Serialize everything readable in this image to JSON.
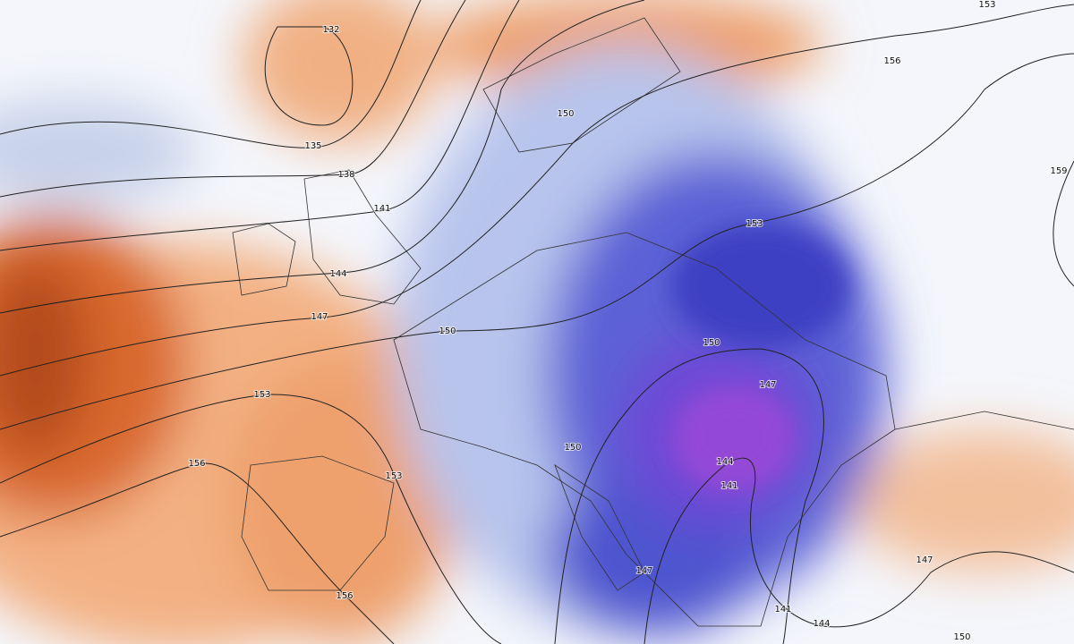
{
  "map": {
    "contour_labels": [
      132,
      135,
      138,
      141,
      144,
      147,
      150,
      153,
      156,
      153,
      156,
      150,
      153,
      156,
      159,
      153,
      150,
      147,
      150,
      144,
      141,
      147,
      141,
      144,
      147,
      150
    ]
  }
}
